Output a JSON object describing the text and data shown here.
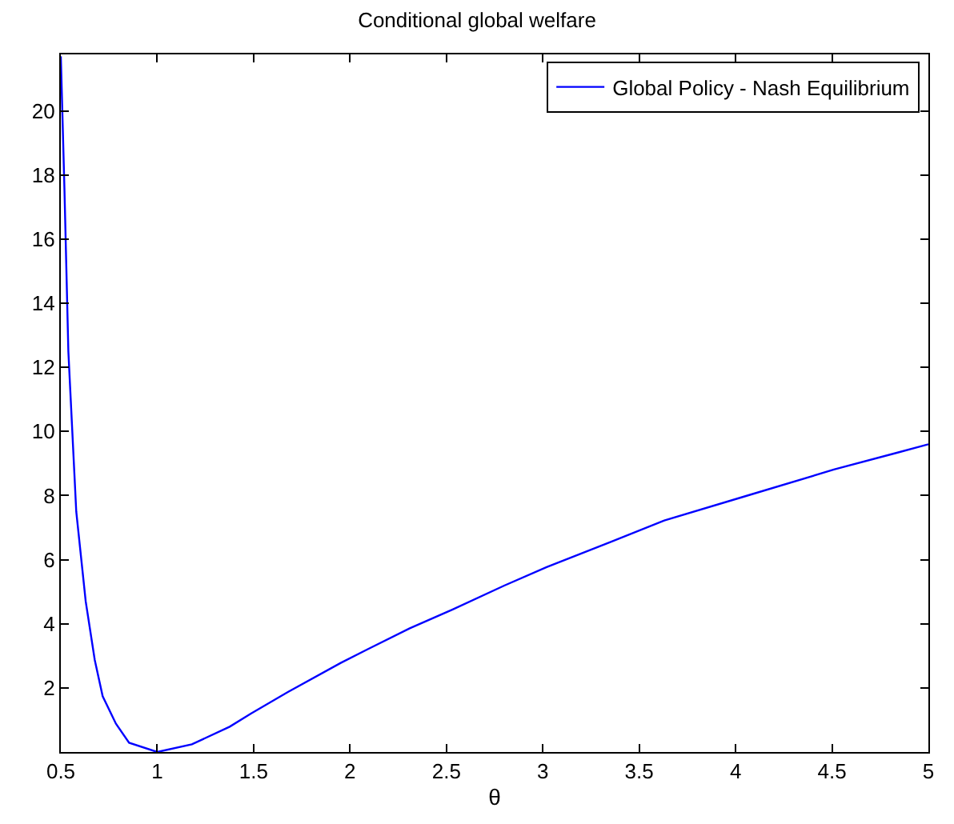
{
  "chart_data": {
    "type": "line",
    "title": "Conditional global welfare",
    "xlabel": "θ",
    "series": [
      {
        "name": "Global Policy - Nash Equilibrium",
        "color": "#0000ff",
        "x": [
          0.5,
          0.519,
          0.539,
          0.58,
          0.629,
          0.676,
          0.717,
          0.786,
          0.854,
          1.0,
          1.18,
          1.376,
          1.486,
          1.678,
          1.952,
          2.09,
          2.31,
          2.53,
          2.8,
          3.02,
          3.35,
          3.63,
          4.04,
          4.51,
          4.84,
          5.0
        ],
        "values": [
          21.7,
          17.5,
          12.5,
          7.5,
          4.7,
          2.87,
          1.74,
          0.88,
          0.29,
          0.0,
          0.24,
          0.79,
          1.2,
          1.87,
          2.78,
          3.2,
          3.86,
          4.44,
          5.19,
          5.77,
          6.55,
          7.22,
          7.96,
          8.81,
          9.34,
          9.6
        ]
      }
    ],
    "xlim": [
      0.5,
      5
    ],
    "ylim": [
      0,
      21.76
    ],
    "xticks": [
      0.5,
      1,
      1.5,
      2,
      2.5,
      3,
      3.5,
      4,
      4.5,
      5
    ],
    "yticks": [
      2,
      4,
      6,
      8,
      10,
      12,
      14,
      16,
      18,
      20
    ],
    "legend": "top right",
    "marker": "none",
    "line_style": "solid"
  }
}
